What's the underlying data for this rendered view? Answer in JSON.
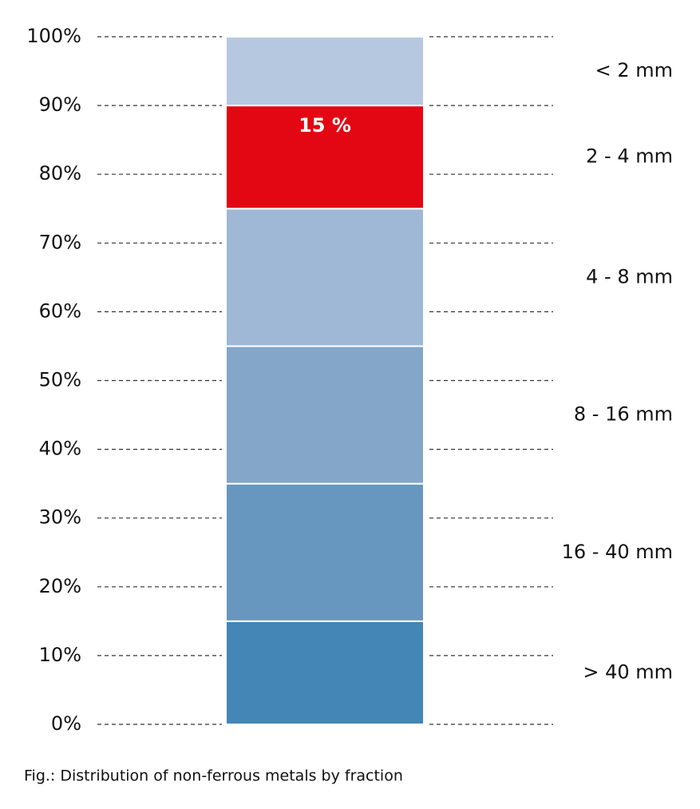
{
  "chart_data": {
    "type": "stacked-bar",
    "categories": [
      null
    ],
    "series": [
      {
        "name": "> 40 mm",
        "color": "#4486b5",
        "values": [
          15
        ]
      },
      {
        "name": "16 - 40 mm",
        "color": "#6797bf",
        "values": [
          20
        ]
      },
      {
        "name": "8 - 16 mm",
        "color": "#83a6c9",
        "values": [
          20
        ]
      },
      {
        "name": "4 - 8 mm",
        "color": "#9fb8d6",
        "values": [
          20
        ]
      },
      {
        "name": "2 - 4 mm",
        "color": "#e30613",
        "values": [
          15
        ],
        "value_labels": [
          "15 %"
        ]
      },
      {
        "name": "< 2 mm",
        "color": "#b6c8e0",
        "values": [
          10
        ]
      }
    ],
    "ylim": [
      0,
      100
    ],
    "yticks": [
      {
        "value": 0,
        "label": "0%"
      },
      {
        "value": 10,
        "label": "10%"
      },
      {
        "value": 20,
        "label": "20%"
      },
      {
        "value": 30,
        "label": "30%"
      },
      {
        "value": 40,
        "label": "40%"
      },
      {
        "value": 50,
        "label": "50%"
      },
      {
        "value": 60,
        "label": "60%"
      },
      {
        "value": 70,
        "label": "70%"
      },
      {
        "value": 80,
        "label": "80%"
      },
      {
        "value": 90,
        "label": "90%"
      },
      {
        "value": 100,
        "label": "100%"
      }
    ],
    "grid": true,
    "caption": "Fig.: Distribution of non-ferrous metals by fraction"
  }
}
